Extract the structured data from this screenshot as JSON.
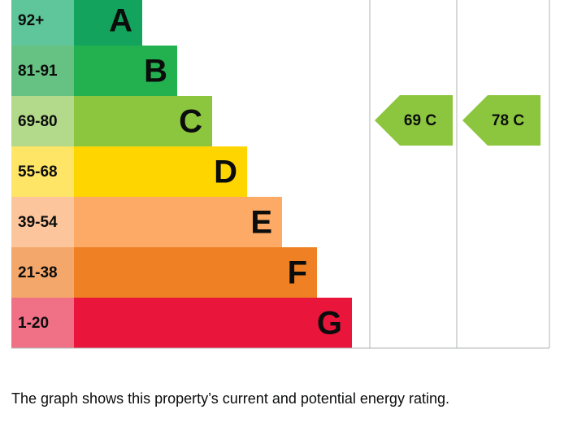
{
  "bands": [
    {
      "range": "92+",
      "letter": "A"
    },
    {
      "range": "81-91",
      "letter": "B"
    },
    {
      "range": "69-80",
      "letter": "C"
    },
    {
      "range": "55-68",
      "letter": "D"
    },
    {
      "range": "39-54",
      "letter": "E"
    },
    {
      "range": "21-38",
      "letter": "F"
    },
    {
      "range": "1-20",
      "letter": "G"
    }
  ],
  "current": {
    "label": "69 C"
  },
  "potential": {
    "label": "78 C"
  },
  "caption": "The graph shows this property’s current and potential energy rating."
}
